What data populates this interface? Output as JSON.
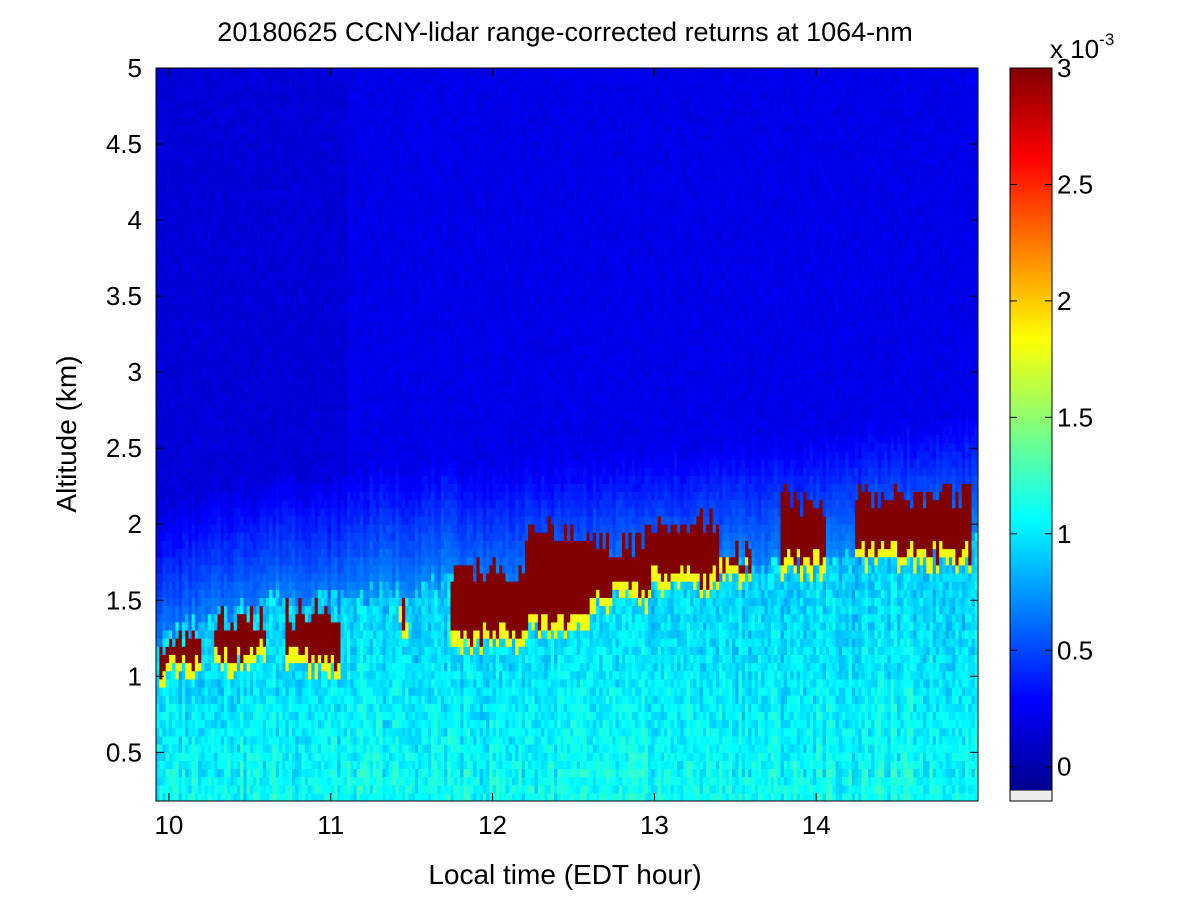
{
  "chart_data": {
    "type": "heatmap",
    "title": "20180625 CCNY-lidar range-corrected returns at 1064-nm",
    "xlabel": "Local time (EDT hour)",
    "ylabel": "Altitude (km)",
    "xlim": [
      9.92,
      15.0
    ],
    "ylim": [
      0.18,
      5.0
    ],
    "x_ticks": [
      10,
      11,
      12,
      13,
      14
    ],
    "x_tick_labels": [
      "10",
      "11",
      "12",
      "13",
      "14"
    ],
    "y_ticks": [
      0.5,
      1,
      1.5,
      2,
      2.5,
      3,
      3.5,
      4,
      4.5,
      5
    ],
    "y_tick_labels": [
      "0.5",
      "1",
      "1.5",
      "2",
      "2.5",
      "3",
      "3.5",
      "4",
      "4.5",
      "5"
    ],
    "colorbar": {
      "colormap": "jet",
      "range": [
        -0.0001,
        0.003
      ],
      "ticks": [
        0,
        0.0005,
        0.001,
        0.0015,
        0.002,
        0.0025,
        0.003
      ],
      "tick_labels": [
        "0",
        "0.5",
        "1",
        "1.5",
        "2",
        "2.5",
        "3"
      ],
      "multiplier_base": "x 10",
      "multiplier_exp": "-3"
    },
    "features": {
      "background_aloft_value": 0.00022,
      "boundary_layer_value": 0.0009,
      "surface_layer_value": 0.0011,
      "cloud_value": 0.003,
      "mixed_layer_top_km": [
        [
          9.92,
          1.25
        ],
        [
          10.3,
          1.4
        ],
        [
          10.7,
          1.55
        ],
        [
          11.0,
          1.5
        ],
        [
          11.3,
          1.55
        ],
        [
          11.7,
          1.6
        ],
        [
          12.0,
          1.55
        ],
        [
          12.5,
          1.6
        ],
        [
          13.0,
          1.65
        ],
        [
          13.5,
          1.7
        ],
        [
          14.0,
          1.75
        ],
        [
          14.5,
          1.85
        ],
        [
          15.0,
          1.9
        ]
      ],
      "cloud_layers": [
        {
          "start": 9.95,
          "end": 10.2,
          "base_km": 1.0,
          "top_km": 1.3
        },
        {
          "start": 10.28,
          "end": 10.6,
          "base_km": 1.08,
          "top_km": 1.45
        },
        {
          "start": 10.72,
          "end": 11.05,
          "base_km": 1.05,
          "top_km": 1.5
        },
        {
          "start": 11.42,
          "end": 11.48,
          "base_km": 1.3,
          "top_km": 1.55
        },
        {
          "start": 11.75,
          "end": 12.2,
          "base_km": 1.2,
          "top_km": 1.8
        },
        {
          "start": 12.2,
          "end": 12.6,
          "base_km": 1.3,
          "top_km": 2.05
        },
        {
          "start": 12.6,
          "end": 12.95,
          "base_km": 1.5,
          "top_km": 1.95
        },
        {
          "start": 12.95,
          "end": 13.4,
          "base_km": 1.58,
          "top_km": 2.1
        },
        {
          "start": 13.4,
          "end": 13.6,
          "base_km": 1.65,
          "top_km": 1.9
        },
        {
          "start": 13.78,
          "end": 14.05,
          "base_km": 1.7,
          "top_km": 2.25
        },
        {
          "start": 14.25,
          "end": 14.95,
          "base_km": 1.75,
          "top_km": 2.3
        }
      ]
    }
  }
}
